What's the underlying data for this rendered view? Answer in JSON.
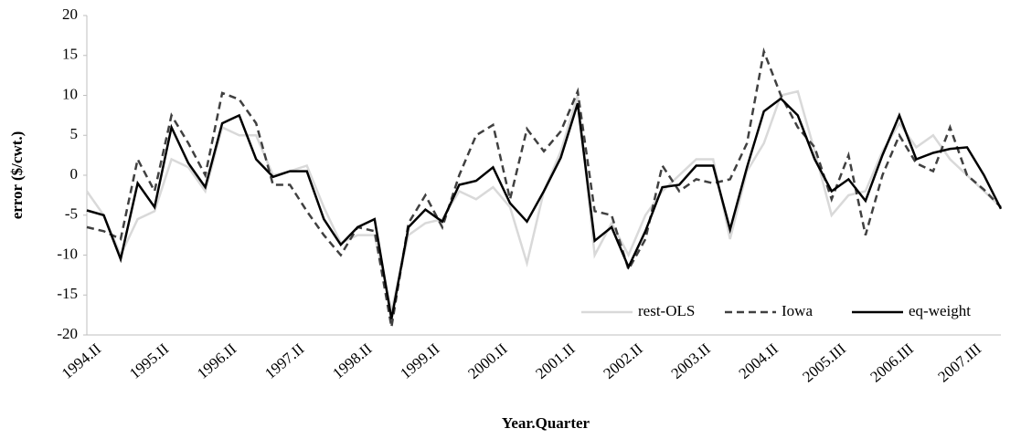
{
  "chart_data": {
    "type": "line",
    "y_label": "error  ($/cwt.)",
    "x_label": "Year.Quarter",
    "categories": [
      "1994.II",
      null,
      null,
      null,
      "1995.II",
      null,
      null,
      null,
      "1996.II",
      null,
      null,
      null,
      "1997.II",
      null,
      null,
      null,
      "1998.II",
      null,
      null,
      null,
      "1999.II",
      null,
      null,
      null,
      "2000.II",
      null,
      null,
      null,
      "2001.II",
      null,
      null,
      null,
      "2002.II",
      null,
      null,
      null,
      "2003.II",
      null,
      null,
      null,
      "2004.II",
      null,
      null,
      null,
      "2005.III",
      null,
      null,
      null,
      "2006.III",
      null,
      null,
      null,
      "2007.III",
      null,
      null
    ],
    "series": [
      {
        "name": "rest-OLS",
        "color": "#d9d9d9",
        "dashed": false,
        "values": [
          -2,
          -5,
          -10,
          -5.5,
          -4.5,
          2,
          1,
          -2,
          6,
          5,
          5,
          0,
          0.5,
          1.2,
          -4,
          -8.5,
          -7.5,
          -7.5,
          -17,
          -7.5,
          -6,
          -5.5,
          -2,
          -3,
          -1.5,
          -4,
          -11,
          -2,
          3,
          10,
          -10,
          -6,
          -10,
          -5,
          -2,
          0,
          2,
          2,
          -8,
          0.5,
          4,
          10,
          10.5,
          3,
          -5,
          -2.5,
          -2,
          3,
          6.5,
          3.5,
          5,
          2,
          0,
          -2,
          -4
        ]
      },
      {
        "name": "Iowa",
        "color": "#404040",
        "dashed": true,
        "values": [
          -6.5,
          -7,
          -8,
          2,
          -2,
          7.5,
          4,
          0,
          10.3,
          9.5,
          6.5,
          -1.2,
          -1.2,
          -4.5,
          -7.5,
          -10,
          -6.5,
          -7,
          -19,
          -6,
          -2.5,
          -6.5,
          0,
          5,
          6.3,
          -3,
          5.8,
          3,
          5.5,
          10.5,
          -4.5,
          -5,
          -11.8,
          -8,
          1.2,
          -2,
          -0.5,
          -1,
          -0.5,
          4,
          15.5,
          10,
          6,
          3.5,
          -3,
          2.5,
          -7.5,
          0,
          5,
          1.5,
          0.5,
          6,
          0,
          -1.8,
          -4
        ]
      },
      {
        "name": "eq-weight",
        "color": "#000000",
        "dashed": false,
        "values": [
          -4.4,
          -5,
          -10.5,
          -1,
          -4,
          6,
          1.5,
          -1.5,
          6.5,
          7.5,
          2,
          -0.2,
          0.5,
          0.5,
          -5.5,
          -8.7,
          -6.5,
          -5.5,
          -18,
          -6.5,
          -4.3,
          -5.8,
          -1.2,
          -0.7,
          1,
          -3.5,
          -5.8,
          -2,
          2.2,
          9,
          -8.2,
          -6.5,
          -11.5,
          -7,
          -1.5,
          -1.2,
          1.2,
          1.2,
          -6.8,
          1,
          8,
          9.6,
          7.5,
          2,
          -2,
          -0.5,
          -3.2,
          2.5,
          7.5,
          2,
          2.8,
          3.3,
          3.5,
          0,
          -4.2
        ]
      }
    ],
    "ylim": [
      -20,
      20
    ],
    "yticks": [
      -20,
      -15,
      -10,
      -5,
      0,
      5,
      10,
      15,
      20
    ],
    "grid": false,
    "legend": "lower right"
  }
}
